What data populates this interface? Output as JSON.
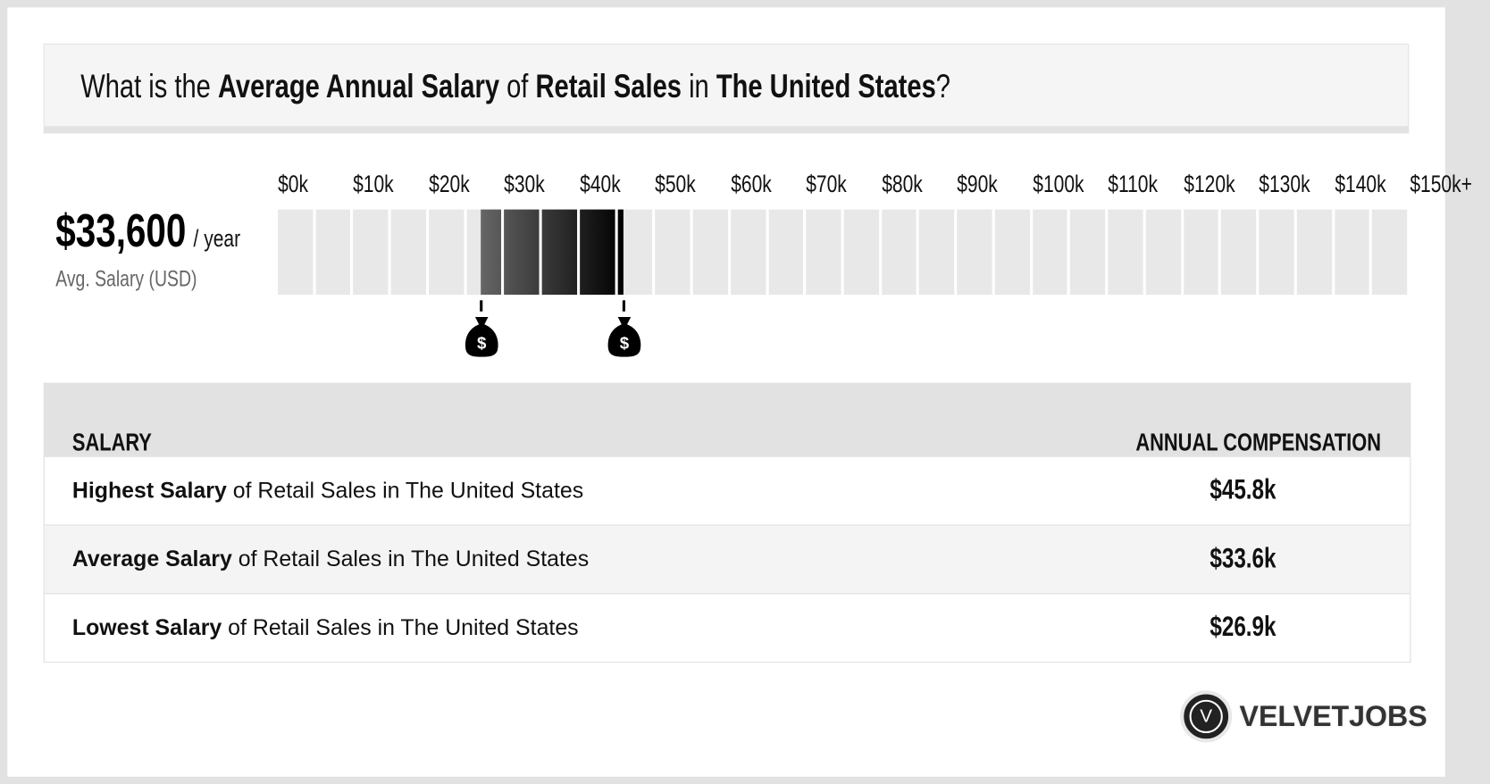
{
  "header": {
    "q1": "What is the ",
    "q2": "Average Annual Salary",
    "q3": " of ",
    "q4": "Retail Sales",
    "q5": " in ",
    "q6": "The United States",
    "q7": "?"
  },
  "summary": {
    "amount": "$33,600",
    "per": "/ year",
    "label": "Avg. Salary (USD)"
  },
  "chart_data": {
    "type": "bar",
    "subtype": "range",
    "tick_labels": [
      "$0k",
      "$10k",
      "$20k",
      "$30k",
      "$40k",
      "$50k",
      "$60k",
      "$70k",
      "$80k",
      "$90k",
      "$100k",
      "$110k",
      "$120k",
      "$130k",
      "$140k",
      "$150k+"
    ],
    "xlim": [
      0,
      150
    ],
    "unit": "$k",
    "segment_size": 5,
    "range": {
      "low": 26.9,
      "average": 33.6,
      "high": 45.8
    },
    "colors": {
      "empty": "#e8e8e8",
      "fill_start": "#666666",
      "fill_end": "#000000"
    }
  },
  "table": {
    "headers": [
      "SALARY",
      "ANNUAL COMPENSATION"
    ],
    "rows": [
      {
        "bold": "Highest Salary",
        "rest": " of Retail Sales in The United States",
        "value": "$45.8k"
      },
      {
        "bold": "Average Salary",
        "rest": " of Retail Sales in The United States",
        "value": "$33.6k"
      },
      {
        "bold": "Lowest Salary",
        "rest": " of Retail Sales in The United States",
        "value": "$26.9k"
      }
    ]
  },
  "logo": {
    "mark": "V",
    "text": "VELVETJOBS"
  },
  "icons": {
    "marker": "money-bag-icon"
  }
}
